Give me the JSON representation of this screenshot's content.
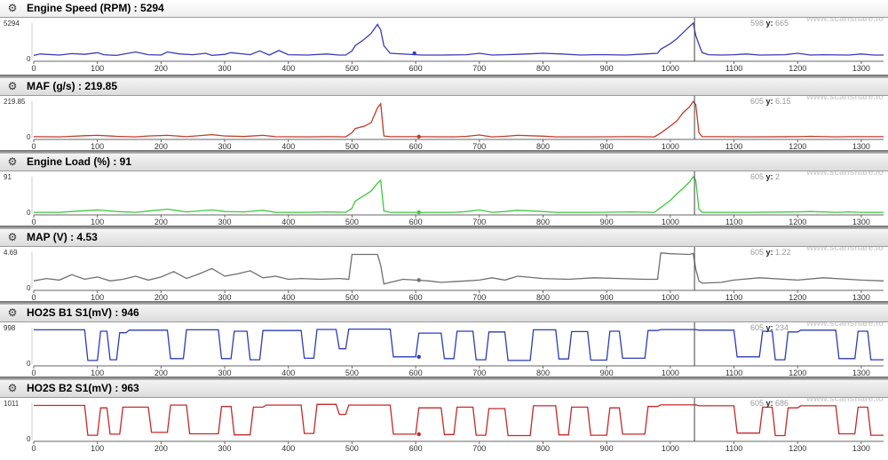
{
  "watermark": "www.scanshare.io",
  "cursor": {
    "x": 1038
  },
  "x_axis": {
    "ticks": [
      0,
      100,
      200,
      300,
      400,
      500,
      600,
      700,
      800,
      900,
      1000,
      1100,
      1200,
      1300
    ],
    "range": [
      0,
      1335
    ]
  },
  "panels": [
    {
      "title": "Engine Speed (RPM)",
      "current_value": "5294",
      "ymax_label": "5294",
      "ymin_label": "0",
      "readout_x": "598",
      "readout_y_label": "y",
      "readout_y": "665",
      "color": "#3a3ab5"
    },
    {
      "title": "MAF (g/s)",
      "current_value": "219.85",
      "ymax_label": "219.85",
      "ymin_label": "0",
      "readout_x": "605",
      "readout_y_label": "y",
      "readout_y": "6.15",
      "color": "#c0392b"
    },
    {
      "title": "Engine Load (%)",
      "current_value": "91",
      "ymax_label": "91",
      "ymin_label": "0",
      "readout_x": "605",
      "readout_y_label": "y",
      "readout_y": "2",
      "color": "#3fc93f"
    },
    {
      "title": "MAP (V)",
      "current_value": "4.53",
      "ymax_label": "4.69",
      "ymin_label": "0",
      "readout_x": "605",
      "readout_y_label": "y",
      "readout_y": "1.22",
      "color": "#6f6f6f"
    },
    {
      "title": "HO2S B1 S1(mV)",
      "current_value": "946",
      "ymax_label": "998",
      "ymin_label": "0",
      "readout_x": "605",
      "readout_y_label": "y",
      "readout_y": "234",
      "color": "#2d3bb5"
    },
    {
      "title": "HO2S B2 S1(mV)",
      "current_value": "963",
      "ymax_label": "1011",
      "ymin_label": "0",
      "readout_x": "605",
      "readout_y_label": "y",
      "readout_y": "686",
      "color": "#c62828"
    }
  ],
  "chart_data": [
    {
      "type": "line",
      "title": "Engine Speed (RPM) : 5294",
      "ylim": [
        0,
        5294
      ],
      "series": [
        {
          "name": "Engine Speed (RPM)",
          "color": "#3a3ab5",
          "x": [
            0,
            10,
            40,
            60,
            80,
            100,
            110,
            130,
            160,
            180,
            200,
            210,
            230,
            250,
            270,
            280,
            300,
            310,
            340,
            355,
            370,
            385,
            400,
            430,
            460,
            480,
            490,
            500,
            505,
            520,
            530,
            540,
            545,
            550,
            560,
            600,
            610,
            640,
            680,
            700,
            720,
            740,
            760,
            800,
            830,
            860,
            880,
            900,
            930,
            960,
            980,
            985,
            1000,
            1010,
            1020,
            1030,
            1036,
            1040,
            1045,
            1050,
            1060,
            1080,
            1100,
            1120,
            1140,
            1180,
            1200,
            1220,
            1240,
            1280,
            1300,
            1320,
            1335
          ],
          "y": [
            600,
            800,
            650,
            850,
            750,
            1000,
            700,
            600,
            1100,
            700,
            650,
            1100,
            800,
            700,
            900,
            600,
            750,
            1000,
            700,
            1250,
            650,
            1300,
            700,
            650,
            800,
            650,
            650,
            1250,
            2000,
            3000,
            3800,
            5100,
            4300,
            2000,
            900,
            700,
            650,
            650,
            700,
            900,
            650,
            700,
            750,
            900,
            800,
            650,
            700,
            700,
            650,
            800,
            900,
            1500,
            2300,
            3000,
            3900,
            4800,
            5294,
            3500,
            2200,
            1000,
            700,
            650,
            700,
            800,
            650,
            700,
            900,
            650,
            700,
            650,
            800,
            650,
            650
          ]
        }
      ]
    },
    {
      "type": "line",
      "title": "MAF (g/s) : 219.85",
      "ylim": [
        0,
        219.85
      ],
      "series": [
        {
          "name": "MAF (g/s)",
          "color": "#c0392b",
          "x": [
            0,
            40,
            60,
            80,
            100,
            130,
            160,
            180,
            210,
            240,
            280,
            300,
            330,
            360,
            380,
            430,
            460,
            490,
            500,
            505,
            520,
            530,
            540,
            545,
            550,
            560,
            600,
            660,
            680,
            700,
            720,
            740,
            760,
            800,
            820,
            880,
            940,
            975,
            985,
            1000,
            1010,
            1020,
            1030,
            1036,
            1040,
            1045,
            1050,
            1080,
            1120,
            1200,
            1220,
            1260,
            1280,
            1300,
            1335
          ],
          "y": [
            6,
            5,
            8,
            12,
            14,
            8,
            5,
            10,
            14,
            6,
            18,
            10,
            7,
            14,
            6,
            5,
            6,
            5,
            30,
            55,
            70,
            90,
            180,
            205,
            10,
            6,
            6,
            5,
            8,
            16,
            5,
            8,
            14,
            9,
            5,
            5,
            6,
            5,
            28,
            70,
            100,
            150,
            185,
            219,
            200,
            30,
            6,
            6,
            5,
            6,
            8,
            5,
            6,
            6,
            6
          ]
        }
      ]
    },
    {
      "type": "line",
      "title": "Engine Load (%) : 91",
      "ylim": [
        0,
        91
      ],
      "series": [
        {
          "name": "Engine Load (%)",
          "color": "#3fc93f",
          "x": [
            0,
            40,
            60,
            80,
            100,
            130,
            160,
            180,
            210,
            230,
            240,
            280,
            300,
            330,
            360,
            380,
            430,
            460,
            490,
            500,
            505,
            520,
            530,
            540,
            545,
            550,
            560,
            600,
            660,
            680,
            700,
            720,
            740,
            760,
            800,
            820,
            880,
            940,
            975,
            985,
            1000,
            1010,
            1020,
            1030,
            1036,
            1040,
            1045,
            1050,
            1080,
            1120,
            1200,
            1220,
            1260,
            1280,
            1300,
            1335
          ],
          "y": [
            2,
            2,
            4,
            6,
            8,
            4,
            2,
            5,
            10,
            5,
            3,
            8,
            4,
            3,
            7,
            2,
            2,
            3,
            2,
            12,
            30,
            45,
            55,
            75,
            82,
            5,
            2,
            2,
            2,
            4,
            8,
            2,
            4,
            7,
            4,
            2,
            2,
            3,
            2,
            14,
            32,
            48,
            62,
            78,
            91,
            82,
            10,
            2,
            2,
            2,
            3,
            4,
            2,
            3,
            2,
            2
          ]
        }
      ]
    },
    {
      "type": "line",
      "title": "MAP (V) : 4.53",
      "ylim": [
        0,
        4.69
      ],
      "series": [
        {
          "name": "MAP (V)",
          "color": "#6f6f6f",
          "x": [
            0,
            20,
            40,
            60,
            80,
            100,
            120,
            140,
            160,
            180,
            200,
            220,
            240,
            260,
            280,
            300,
            320,
            340,
            360,
            380,
            400,
            420,
            450,
            480,
            495,
            500,
            505,
            540,
            545,
            550,
            560,
            580,
            600,
            620,
            640,
            680,
            700,
            720,
            740,
            760,
            800,
            840,
            880,
            920,
            960,
            980,
            985,
            1000,
            1030,
            1036,
            1040,
            1045,
            1050,
            1080,
            1100,
            1140,
            1180,
            1200,
            1240,
            1280,
            1300,
            1335
          ],
          "y": [
            1.0,
            1.3,
            1.1,
            1.8,
            1.2,
            1.5,
            1.0,
            1.2,
            1.6,
            1.1,
            1.5,
            2.2,
            1.3,
            1.9,
            2.6,
            1.6,
            1.9,
            2.3,
            1.4,
            1.6,
            1.2,
            1.3,
            1.2,
            1.3,
            1.2,
            4.4,
            4.4,
            4.4,
            3.0,
            0.6,
            0.8,
            1.2,
            1.1,
            1.0,
            0.8,
            1.0,
            1.1,
            1.4,
            1.1,
            1.6,
            1.3,
            1.2,
            1.4,
            1.3,
            1.2,
            1.2,
            4.6,
            4.5,
            4.4,
            4.53,
            2.5,
            1.0,
            0.7,
            0.8,
            1.1,
            1.4,
            1.2,
            1.1,
            1.4,
            1.2,
            1.1,
            1.0
          ]
        }
      ]
    },
    {
      "type": "line",
      "title": "HO2S B1 S1(mV) : 946",
      "ylim": [
        0,
        998
      ],
      "series": [
        {
          "name": "HO2S B1 S1(mV)",
          "color": "#2d3bb5",
          "x": [
            0,
            80,
            85,
            100,
            105,
            115,
            120,
            130,
            135,
            145,
            150,
            210,
            215,
            235,
            240,
            290,
            295,
            310,
            315,
            335,
            340,
            355,
            360,
            420,
            425,
            440,
            445,
            475,
            480,
            490,
            495,
            560,
            565,
            600,
            605,
            640,
            645,
            660,
            665,
            690,
            695,
            710,
            715,
            740,
            745,
            780,
            785,
            820,
            825,
            840,
            845,
            870,
            875,
            900,
            905,
            920,
            925,
            960,
            965,
            980,
            985,
            1040,
            1045,
            1100,
            1105,
            1140,
            1145,
            1160,
            1165,
            1180,
            1185,
            1200,
            1205,
            1260,
            1265,
            1290,
            1295,
            1310,
            1315,
            1335
          ],
          "y": [
            940,
            940,
            100,
            100,
            900,
            900,
            120,
            120,
            860,
            860,
            930,
            930,
            150,
            150,
            940,
            940,
            150,
            150,
            900,
            900,
            120,
            120,
            920,
            920,
            160,
            160,
            950,
            950,
            420,
            420,
            960,
            960,
            200,
            200,
            850,
            850,
            150,
            150,
            900,
            900,
            120,
            120,
            880,
            880,
            100,
            100,
            940,
            940,
            140,
            140,
            890,
            890,
            110,
            110,
            900,
            900,
            160,
            160,
            920,
            920,
            946,
            946,
            930,
            930,
            200,
            200,
            900,
            900,
            120,
            120,
            880,
            880,
            930,
            930,
            150,
            150,
            900,
            900,
            120,
            120
          ]
        }
      ]
    },
    {
      "type": "line",
      "title": "HO2S B2 S1(mV) : 963",
      "ylim": [
        0,
        1011
      ],
      "series": [
        {
          "name": "HO2S B2 S1(mV)",
          "color": "#c62828",
          "x": [
            0,
            80,
            85,
            100,
            105,
            115,
            120,
            135,
            140,
            180,
            185,
            210,
            215,
            240,
            245,
            290,
            295,
            310,
            315,
            340,
            345,
            360,
            365,
            420,
            425,
            440,
            445,
            475,
            480,
            490,
            495,
            560,
            565,
            600,
            605,
            640,
            645,
            660,
            665,
            690,
            695,
            710,
            715,
            740,
            745,
            780,
            785,
            820,
            825,
            840,
            845,
            870,
            875,
            900,
            905,
            920,
            925,
            960,
            965,
            980,
            985,
            1040,
            1045,
            1100,
            1105,
            1140,
            1145,
            1160,
            1165,
            1180,
            1185,
            1200,
            1205,
            1260,
            1265,
            1290,
            1295,
            1310,
            1315,
            1335
          ],
          "y": [
            950,
            950,
            120,
            120,
            880,
            880,
            150,
            150,
            900,
            900,
            200,
            200,
            960,
            960,
            160,
            160,
            920,
            920,
            130,
            130,
            900,
            900,
            960,
            960,
            170,
            170,
            980,
            980,
            700,
            700,
            960,
            960,
            150,
            150,
            880,
            880,
            140,
            140,
            900,
            900,
            120,
            120,
            860,
            860,
            110,
            110,
            940,
            940,
            130,
            130,
            900,
            900,
            120,
            120,
            880,
            880,
            150,
            150,
            920,
            920,
            963,
            963,
            940,
            940,
            180,
            180,
            900,
            900,
            110,
            110,
            880,
            880,
            940,
            940,
            160,
            160,
            900,
            900,
            120,
            120
          ]
        }
      ]
    }
  ]
}
